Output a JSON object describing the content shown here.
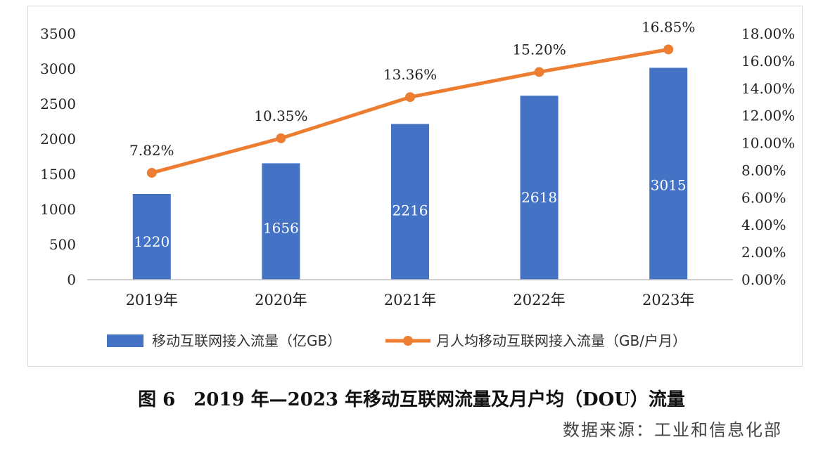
{
  "chart_data": {
    "type": "bar+line",
    "categories": [
      "2019年",
      "2020年",
      "2021年",
      "2022年",
      "2023年"
    ],
    "series": [
      {
        "name": "移动互联网接入流量（亿GB）",
        "type": "bar",
        "axis": "left",
        "values": [
          1220,
          1656,
          2216,
          2618,
          3015
        ],
        "data_labels": [
          "1220",
          "1656",
          "2216",
          "2618",
          "3015"
        ],
        "color": "#4472c4"
      },
      {
        "name": "月人均移动互联网接入流量（GB/户月）",
        "type": "line",
        "axis": "right",
        "values": [
          7.82,
          10.35,
          13.36,
          15.2,
          16.85
        ],
        "data_labels": [
          "7.82%",
          "10.35%",
          "13.36%",
          "15.20%",
          "16.85%"
        ],
        "color": "#ed7d31"
      }
    ],
    "y_left": {
      "range": [
        0,
        3500
      ],
      "ticks": [
        0,
        500,
        1000,
        1500,
        2000,
        2500,
        3000,
        3500
      ],
      "tick_labels": [
        "0",
        "500",
        "1000",
        "1500",
        "2000",
        "2500",
        "3000",
        "3500"
      ]
    },
    "y_right": {
      "range": [
        0,
        18
      ],
      "ticks": [
        0,
        2,
        4,
        6,
        8,
        10,
        12,
        14,
        16,
        18
      ],
      "tick_labels": [
        "0.00%",
        "2.00%",
        "4.00%",
        "6.00%",
        "8.00%",
        "10.00%",
        "12.00%",
        "14.00%",
        "16.00%",
        "18.00%"
      ]
    },
    "grid": false,
    "legend": "bottom"
  },
  "caption": "图 6　2019 年—2023 年移动互联网流量及月户均（DOU）流量",
  "source": "数据来源：工业和信息化部"
}
